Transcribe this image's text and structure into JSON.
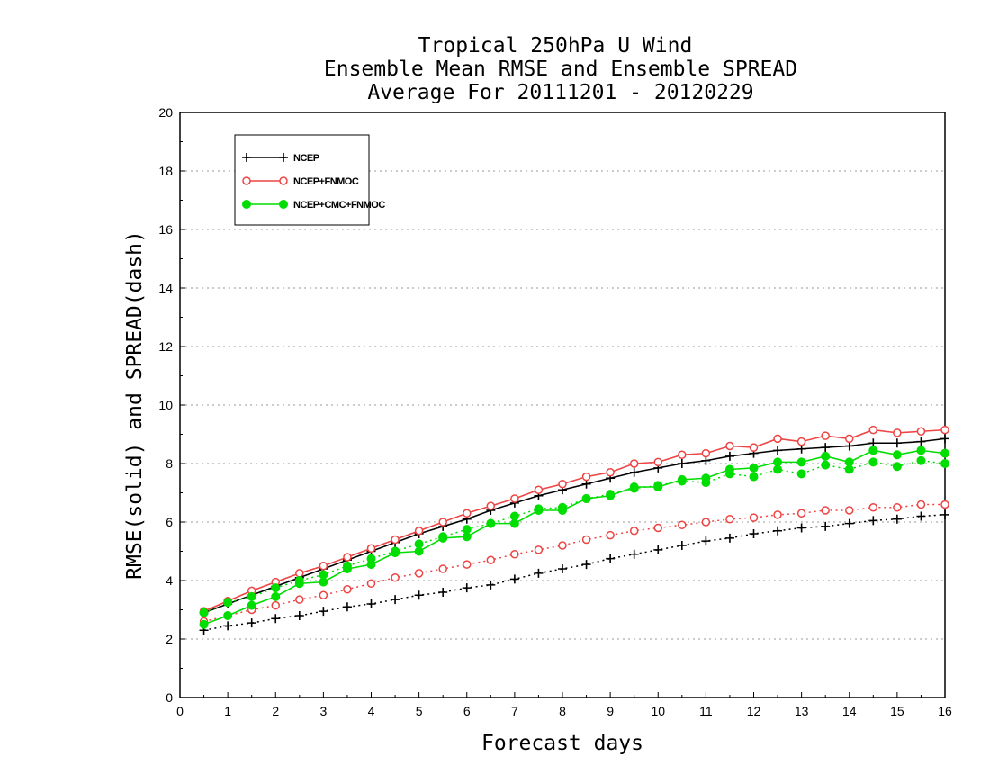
{
  "chart_data": {
    "type": "line",
    "title_lines": [
      "Tropical 250hPa U Wind",
      "Ensemble Mean RMSE and Ensemble SPREAD",
      "Average For 20111201 - 20120229"
    ],
    "xlabel": "Forecast days",
    "ylabel": "RMSE(solid) and SPREAD(dash)",
    "xlim": [
      0,
      16
    ],
    "ylim": [
      0,
      20
    ],
    "x_ticks": [
      "0",
      "1",
      "2",
      "3",
      "4",
      "5",
      "6",
      "7",
      "8",
      "9",
      "10",
      "11",
      "12",
      "13",
      "14",
      "15",
      "16"
    ],
    "y_ticks": [
      "0",
      "2",
      "4",
      "6",
      "8",
      "10",
      "12",
      "14",
      "16",
      "18",
      "20"
    ],
    "grid": "horizontal dotted",
    "legend_position": "top-left",
    "x": [
      0.5,
      1,
      1.5,
      2,
      2.5,
      3,
      3.5,
      4,
      4.5,
      5,
      5.5,
      6,
      6.5,
      7,
      7.5,
      8,
      8.5,
      9,
      9.5,
      10,
      10.5,
      11,
      11.5,
      12,
      12.5,
      13,
      13.5,
      14,
      14.5,
      15,
      15.5,
      16
    ],
    "series": [
      {
        "name": "NCEP",
        "color": "#000000",
        "marker": "plus",
        "rmse": [
          2.9,
          3.2,
          3.5,
          3.8,
          4.1,
          4.4,
          4.7,
          5.0,
          5.3,
          5.6,
          5.85,
          6.1,
          6.4,
          6.65,
          6.9,
          7.1,
          7.3,
          7.5,
          7.7,
          7.85,
          8.0,
          8.1,
          8.25,
          8.35,
          8.45,
          8.5,
          8.55,
          8.6,
          8.7,
          8.7,
          8.75,
          8.85
        ],
        "spread": [
          2.3,
          2.45,
          2.55,
          2.7,
          2.8,
          2.95,
          3.1,
          3.2,
          3.35,
          3.5,
          3.6,
          3.75,
          3.85,
          4.05,
          4.25,
          4.4,
          4.55,
          4.75,
          4.9,
          5.05,
          5.2,
          5.35,
          5.45,
          5.6,
          5.7,
          5.8,
          5.85,
          5.95,
          6.05,
          6.1,
          6.2,
          6.25
        ]
      },
      {
        "name": "NCEP+FNMOC",
        "color": "#ee4444",
        "marker": "open-circle",
        "rmse": [
          2.95,
          3.3,
          3.65,
          3.95,
          4.25,
          4.5,
          4.8,
          5.1,
          5.4,
          5.7,
          6.0,
          6.3,
          6.55,
          6.8,
          7.1,
          7.3,
          7.55,
          7.7,
          8.0,
          8.05,
          8.3,
          8.35,
          8.6,
          8.55,
          8.85,
          8.75,
          8.95,
          8.85,
          9.15,
          9.05,
          9.1,
          9.15
        ],
        "spread": [
          2.6,
          2.8,
          3.0,
          3.15,
          3.35,
          3.5,
          3.7,
          3.9,
          4.1,
          4.25,
          4.4,
          4.55,
          4.7,
          4.9,
          5.05,
          5.2,
          5.4,
          5.55,
          5.7,
          5.8,
          5.9,
          6.0,
          6.1,
          6.15,
          6.25,
          6.3,
          6.4,
          6.4,
          6.5,
          6.5,
          6.6,
          6.6
        ]
      },
      {
        "name": "NCEP+CMC+FNMOC",
        "color": "#00dd00",
        "marker": "filled-circle",
        "rmse": [
          2.5,
          2.8,
          3.15,
          3.45,
          3.9,
          3.95,
          4.4,
          4.55,
          4.95,
          5.0,
          5.45,
          5.5,
          5.95,
          5.95,
          6.4,
          6.4,
          6.8,
          6.9,
          7.2,
          7.2,
          7.45,
          7.5,
          7.8,
          7.85,
          8.05,
          8.05,
          8.25,
          8.05,
          8.45,
          8.3,
          8.45,
          8.35
        ],
        "spread": [
          2.9,
          3.25,
          3.45,
          3.75,
          4.0,
          4.2,
          4.5,
          4.75,
          5.0,
          5.25,
          5.5,
          5.75,
          5.95,
          6.2,
          6.45,
          6.5,
          6.8,
          6.95,
          7.15,
          7.25,
          7.4,
          7.35,
          7.65,
          7.55,
          7.8,
          7.65,
          7.95,
          7.8,
          8.05,
          7.9,
          8.1,
          8.0
        ]
      }
    ]
  }
}
